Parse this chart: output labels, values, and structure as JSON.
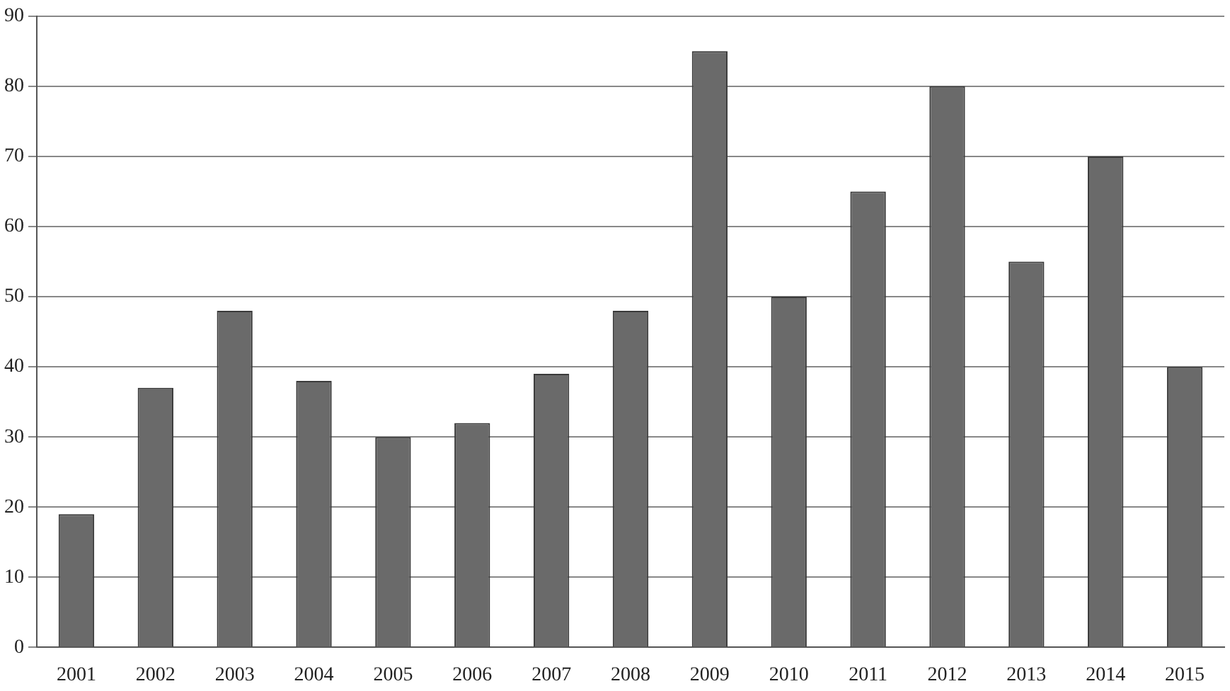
{
  "chart_data": {
    "type": "bar",
    "categories": [
      "2001",
      "2002",
      "2003",
      "2004",
      "2005",
      "2006",
      "2007",
      "2008",
      "2009",
      "2010",
      "2011",
      "2012",
      "2013",
      "2014",
      "2015"
    ],
    "values": [
      19,
      37,
      48,
      38,
      30,
      32,
      39,
      48,
      85,
      50,
      65,
      80,
      55,
      70,
      40
    ],
    "color": "#6a6a6a",
    "ylim": [
      0,
      90
    ],
    "yticks": [
      0,
      10,
      20,
      30,
      40,
      50,
      60,
      70,
      80,
      90
    ],
    "grid": "y",
    "legend": false
  }
}
